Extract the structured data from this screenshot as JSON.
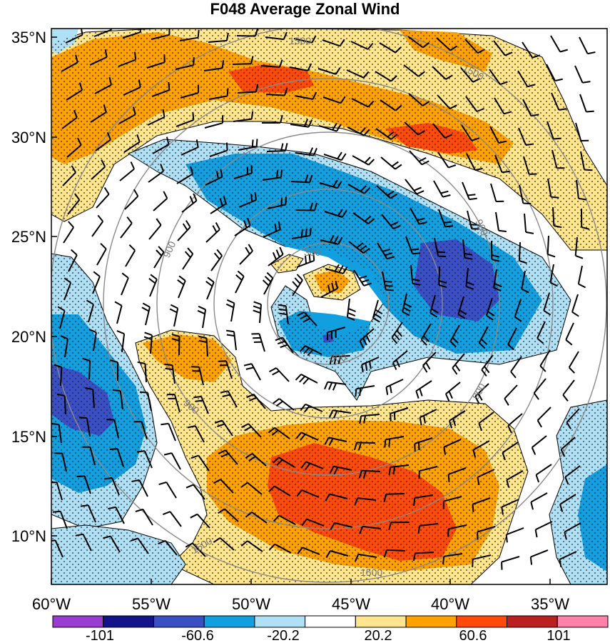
{
  "title": "F048 Average Zonal Wind",
  "lat_labels": [
    "35°N",
    "30°N",
    "25°N",
    "20°N",
    "15°N",
    "10°N"
  ],
  "lon_labels": [
    "60°W",
    "55°W",
    "50°W",
    "45°W",
    "40°W",
    "35°W"
  ],
  "isoline_labels": [
    "1500",
    "1500",
    "900",
    "300",
    "300",
    "900",
    "900",
    "1500",
    "1500",
    "900"
  ],
  "colorbar": {
    "labels": [
      "-101",
      "-60.6",
      "-20.2",
      "20.2",
      "60.6",
      "101"
    ],
    "colors": [
      "#9a3cd0",
      "#13138a",
      "#3b4fc5",
      "#129fe0",
      "#b0e0f5",
      "#ffffff",
      "#ffe68e",
      "#ffa200",
      "#ff4a0a",
      "#bb2020",
      "#ff80a8"
    ]
  },
  "palette": {
    "dark_blue": "#3b4fc5",
    "blue": "#129fe0",
    "light_blue": "#b0e0f5",
    "yellow": "#ffe68e",
    "orange": "#ffa200",
    "red": "#ff4a0a",
    "isoline": "#8a8a8a"
  }
}
